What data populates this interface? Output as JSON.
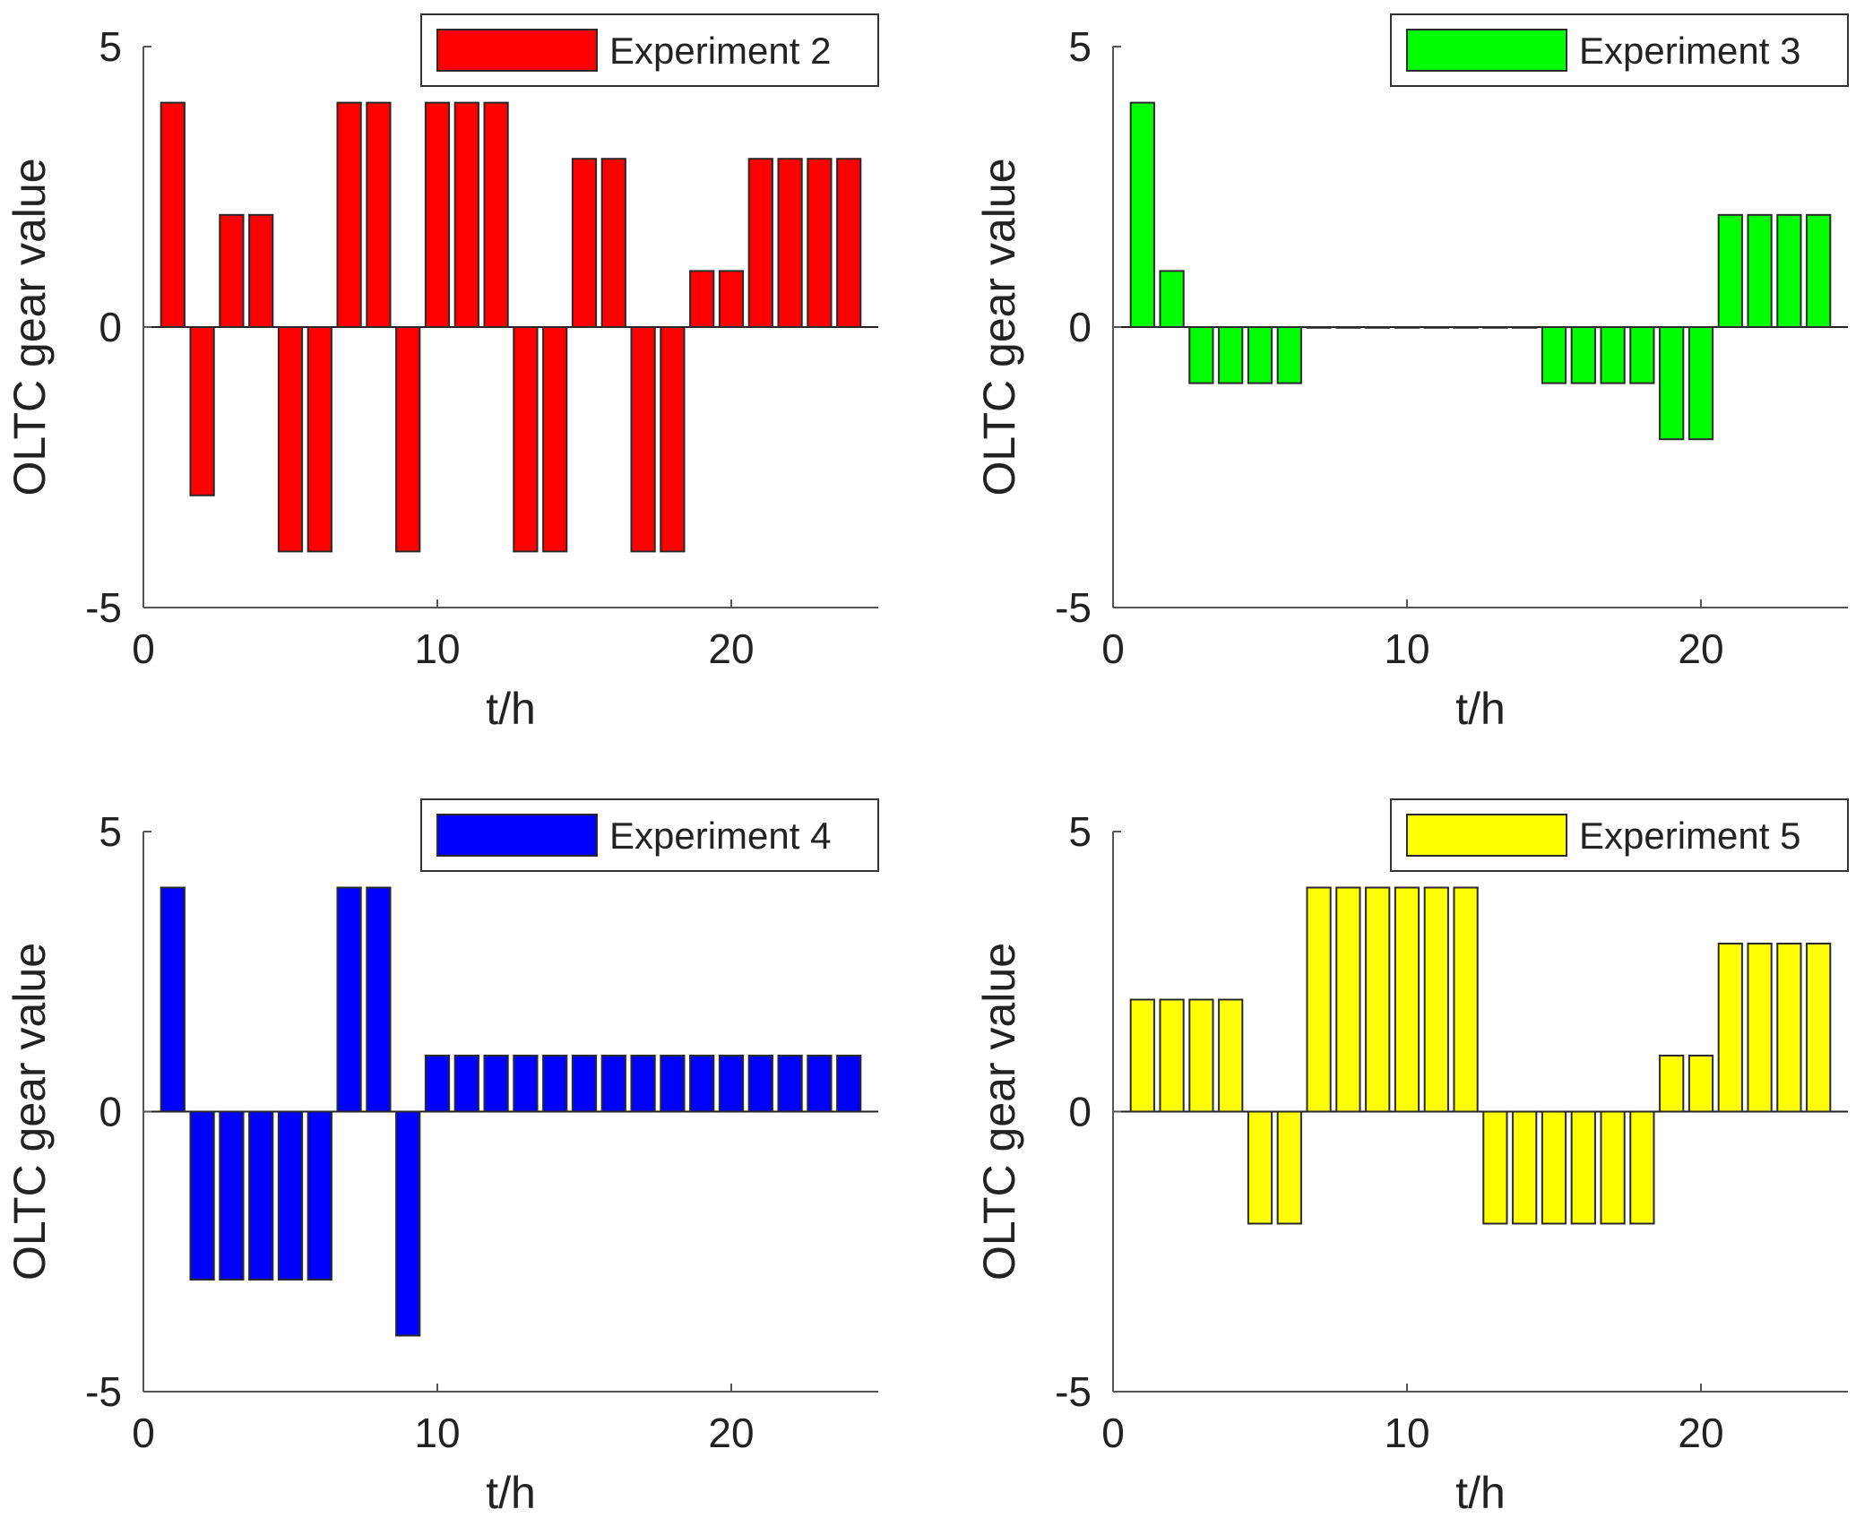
{
  "chart_data": [
    {
      "type": "bar",
      "title": "",
      "xlabel": "t/h",
      "ylabel": "OLTC gear value",
      "xlim": [
        0,
        25
      ],
      "ylim": [
        -5,
        5
      ],
      "xticks": [
        0,
        10,
        20
      ],
      "yticks": [
        -5,
        0,
        5
      ],
      "legend": {
        "label": "Experiment 2",
        "position": "top-right"
      },
      "series": [
        {
          "name": "Experiment 2",
          "color": "#ff0000",
          "x": [
            1,
            2,
            3,
            4,
            5,
            6,
            7,
            8,
            9,
            10,
            11,
            12,
            13,
            14,
            15,
            16,
            17,
            18,
            19,
            20,
            21,
            22,
            23,
            24
          ],
          "values": [
            4,
            -3,
            2,
            2,
            -4,
            -4,
            4,
            4,
            -4,
            4,
            4,
            4,
            -4,
            -4,
            3,
            3,
            -4,
            -4,
            1,
            1,
            3,
            3,
            3,
            3
          ]
        }
      ]
    },
    {
      "type": "bar",
      "title": "",
      "xlabel": "t/h",
      "ylabel": "OLTC gear value",
      "xlim": [
        0,
        25
      ],
      "ylim": [
        -5,
        5
      ],
      "xticks": [
        0,
        10,
        20
      ],
      "yticks": [
        -5,
        0,
        5
      ],
      "legend": {
        "label": "Experiment 3",
        "position": "top-right"
      },
      "series": [
        {
          "name": "Experiment 3",
          "color": "#00ff00",
          "x": [
            1,
            2,
            3,
            4,
            5,
            6,
            7,
            8,
            9,
            10,
            11,
            12,
            13,
            14,
            15,
            16,
            17,
            18,
            19,
            20,
            21,
            22,
            23,
            24
          ],
          "values": [
            4,
            1,
            -1,
            -1,
            -1,
            -1,
            0,
            0,
            0,
            0,
            0,
            0,
            0,
            0,
            -1,
            -1,
            -1,
            -1,
            -2,
            -2,
            2,
            2,
            2,
            2
          ]
        }
      ]
    },
    {
      "type": "bar",
      "title": "",
      "xlabel": "t/h",
      "ylabel": "OLTC gear value",
      "xlim": [
        0,
        25
      ],
      "ylim": [
        -5,
        5
      ],
      "xticks": [
        0,
        10,
        20
      ],
      "yticks": [
        -5,
        0,
        5
      ],
      "legend": {
        "label": "Experiment 4",
        "position": "top-right"
      },
      "series": [
        {
          "name": "Experiment 4",
          "color": "#0000ff",
          "x": [
            1,
            2,
            3,
            4,
            5,
            6,
            7,
            8,
            9,
            10,
            11,
            12,
            13,
            14,
            15,
            16,
            17,
            18,
            19,
            20,
            21,
            22,
            23,
            24
          ],
          "values": [
            4,
            -3,
            -3,
            -3,
            -3,
            -3,
            4,
            4,
            -4,
            1,
            1,
            1,
            1,
            1,
            1,
            1,
            1,
            1,
            1,
            1,
            1,
            1,
            1,
            1
          ]
        }
      ]
    },
    {
      "type": "bar",
      "title": "",
      "xlabel": "t/h",
      "ylabel": "OLTC gear value",
      "xlim": [
        0,
        25
      ],
      "ylim": [
        -5,
        5
      ],
      "xticks": [
        0,
        10,
        20
      ],
      "yticks": [
        -5,
        0,
        5
      ],
      "legend": {
        "label": "Experiment 5",
        "position": "top-right"
      },
      "series": [
        {
          "name": "Experiment 5",
          "color": "#ffff00",
          "x": [
            1,
            2,
            3,
            4,
            5,
            6,
            7,
            8,
            9,
            10,
            11,
            12,
            13,
            14,
            15,
            16,
            17,
            18,
            19,
            20,
            21,
            22,
            23,
            24
          ],
          "values": [
            2,
            2,
            2,
            2,
            -2,
            -2,
            4,
            4,
            4,
            4,
            4,
            4,
            -2,
            -2,
            -2,
            -2,
            -2,
            -2,
            1,
            1,
            3,
            3,
            3,
            3
          ]
        }
      ]
    }
  ]
}
